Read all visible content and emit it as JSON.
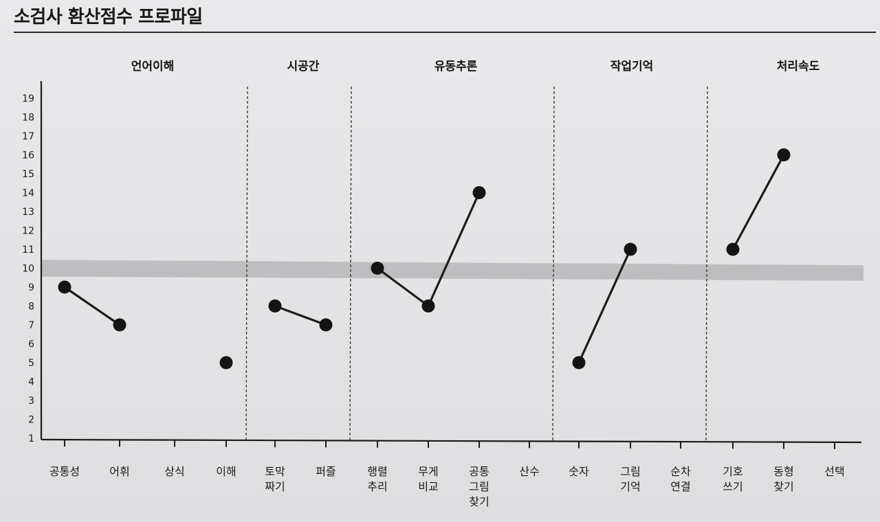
{
  "page": {
    "title": "소검사 환산점수 프로파일"
  },
  "chart_data": {
    "type": "line",
    "title": "소검사 환산점수 프로파일",
    "xlabel": "",
    "ylabel": "",
    "ylim": [
      1,
      19
    ],
    "yticks": [
      1,
      2,
      3,
      4,
      5,
      6,
      7,
      8,
      9,
      10,
      11,
      12,
      13,
      14,
      15,
      16,
      17,
      18,
      19
    ],
    "grid": false,
    "reference_band": {
      "low": 9.7,
      "high": 10.3
    },
    "groups": [
      {
        "name": "언어이해",
        "categories": [
          "공통성",
          "어휘",
          "상식",
          "이해"
        ]
      },
      {
        "name": "시공간",
        "categories": [
          "토막\n짜기",
          "퍼즐"
        ]
      },
      {
        "name": "유동추론",
        "categories": [
          "행렬\n추리",
          "무게\n비교",
          "공통\n그림\n찾기",
          "산수"
        ]
      },
      {
        "name": "작업기억",
        "categories": [
          "숫자",
          "그림\n기억",
          "순차\n연결"
        ]
      },
      {
        "name": "처리속도",
        "categories": [
          "기호\n쓰기",
          "동형\n찾기",
          "선택"
        ]
      }
    ],
    "categories": [
      "공통성",
      "어휘",
      "상식",
      "이해",
      "토막\n짜기",
      "퍼즐",
      "행렬\n추리",
      "무게\n비교",
      "공통\n그림\n찾기",
      "산수",
      "숫자",
      "그림\n기억",
      "순차\n연결",
      "기호\n쓰기",
      "동형\n찾기",
      "선택"
    ],
    "values": [
      9,
      7,
      null,
      5,
      8,
      7,
      10,
      8,
      14,
      null,
      5,
      11,
      null,
      11,
      16,
      null
    ],
    "connections": [
      [
        0,
        1
      ],
      [
        4,
        5
      ],
      [
        6,
        7
      ],
      [
        7,
        8
      ],
      [
        10,
        11
      ],
      [
        13,
        14
      ]
    ]
  },
  "colors": {
    "line": "#1c1c1c",
    "marker": "#141414",
    "band": "#b9b9bb",
    "axis": "#1a1a1a",
    "divider": "#3a3a3a"
  }
}
